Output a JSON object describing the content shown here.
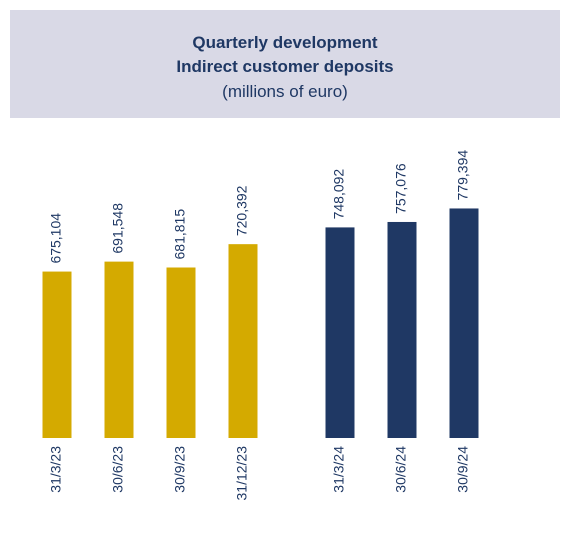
{
  "chart_data": {
    "type": "bar",
    "title": "Quarterly development",
    "subtitle": "Indirect customer deposits",
    "unit_label": "(millions of euro)",
    "categories": [
      "31/3/23",
      "30/6/23",
      "30/9/23",
      "31/12/23",
      "31/3/24",
      "30/6/24",
      "30/9/24"
    ],
    "values": [
      675104,
      691548,
      681815,
      720392,
      748092,
      757076,
      779394
    ],
    "value_labels": [
      "675,104",
      "691,548",
      "681,815",
      "720,392",
      "748,092",
      "757,076",
      "779,394"
    ],
    "colors": [
      "#d4aa00",
      "#d4aa00",
      "#d4aa00",
      "#d4aa00",
      "#1f3864",
      "#1f3864",
      "#1f3864"
    ],
    "ylim": [
      400000,
      800000
    ]
  }
}
